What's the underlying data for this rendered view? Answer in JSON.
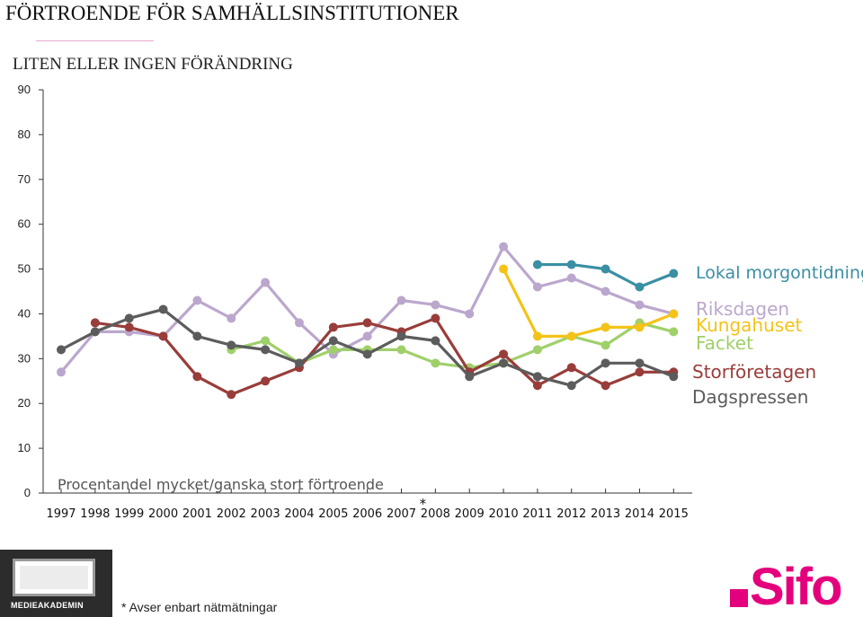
{
  "header": {
    "title": "FÖRTROENDE FÖR SAMHÄLLSINSTITUTIONER",
    "subtitle": "LITEN ELLER INGEN FÖRÄNDRING"
  },
  "chart_data": {
    "type": "line",
    "xlabel": "Procentandel mycket/ganska stort förtroende",
    "ylabel": "",
    "ylim": [
      0,
      90
    ],
    "yticks": [
      0,
      10,
      20,
      30,
      40,
      50,
      60,
      70,
      80,
      90
    ],
    "categories": [
      "1997",
      "1998",
      "1999",
      "2000",
      "2001",
      "2002",
      "2003",
      "2004",
      "2005",
      "2006",
      "2007",
      "2008",
      "2009",
      "2010",
      "2011",
      "2012",
      "2013",
      "2014",
      "2015"
    ],
    "marker_annotation": {
      "category": "2008",
      "text": "*"
    },
    "grid": false,
    "legend_placement": "right",
    "series": [
      {
        "name": "Lokal morgontidning",
        "color": "#3a8fa3",
        "values": [
          null,
          null,
          null,
          null,
          null,
          null,
          null,
          null,
          null,
          null,
          null,
          null,
          null,
          null,
          51,
          51,
          50,
          46,
          49
        ]
      },
      {
        "name": "Riksdagen",
        "color": "#bba7cd",
        "values": [
          27,
          36,
          36,
          35,
          43,
          39,
          47,
          38,
          31,
          35,
          43,
          42,
          40,
          55,
          46,
          48,
          45,
          42,
          40
        ]
      },
      {
        "name": "Kungahuset",
        "color": "#f3c318",
        "values": [
          null,
          null,
          null,
          null,
          null,
          null,
          null,
          null,
          null,
          null,
          null,
          null,
          null,
          50,
          35,
          35,
          37,
          37,
          40
        ]
      },
      {
        "name": "Facket",
        "color": "#9fd06a",
        "values": [
          null,
          null,
          null,
          null,
          null,
          32,
          34,
          29,
          32,
          32,
          32,
          29,
          28,
          29,
          32,
          35,
          33,
          38,
          36
        ]
      },
      {
        "name": "Storföretagen",
        "color": "#983d3a",
        "values": [
          null,
          38,
          37,
          35,
          26,
          22,
          25,
          28,
          37,
          38,
          36,
          39,
          27,
          31,
          24,
          28,
          24,
          27,
          27
        ]
      },
      {
        "name": "Dagspressen",
        "color": "#5c5c5c",
        "values": [
          32,
          36,
          39,
          41,
          35,
          33,
          32,
          29,
          34,
          31,
          35,
          34,
          26,
          29,
          26,
          24,
          29,
          29,
          26
        ]
      }
    ]
  },
  "footnote": "* Avser  enbart nätmätningar",
  "logos": {
    "left": "MEDIEAKADEMIN",
    "right": "Sifo"
  }
}
